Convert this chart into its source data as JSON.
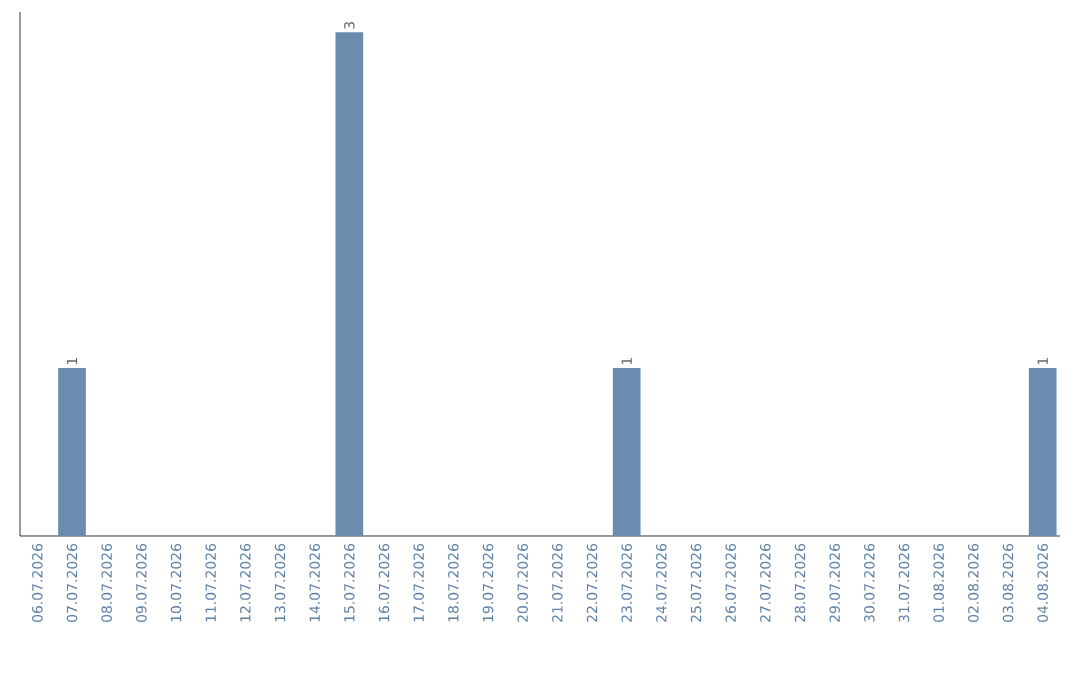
{
  "chart_data": {
    "type": "bar",
    "categories": [
      "06.07.2026",
      "07.07.2026",
      "08.07.2026",
      "09.07.2026",
      "10.07.2026",
      "11.07.2026",
      "12.07.2026",
      "13.07.2026",
      "14.07.2026",
      "15.07.2026",
      "16.07.2026",
      "17.07.2026",
      "18.07.2026",
      "19.07.2026",
      "20.07.2026",
      "21.07.2026",
      "22.07.2026",
      "23.07.2026",
      "24.07.2026",
      "25.07.2026",
      "26.07.2026",
      "27.07.2026",
      "28.07.2026",
      "29.07.2026",
      "30.07.2026",
      "31.07.2026",
      "01.08.2026",
      "02.08.2026",
      "03.08.2026",
      "04.08.2026"
    ],
    "values": [
      0,
      1,
      0,
      0,
      0,
      0,
      0,
      0,
      0,
      3,
      0,
      0,
      0,
      0,
      0,
      0,
      0,
      1,
      0,
      0,
      0,
      0,
      0,
      0,
      0,
      0,
      0,
      0,
      0,
      1
    ],
    "value_labels": [
      null,
      "1",
      null,
      null,
      null,
      null,
      null,
      null,
      null,
      "3",
      null,
      null,
      null,
      null,
      null,
      null,
      null,
      "1",
      null,
      null,
      null,
      null,
      null,
      null,
      null,
      null,
      null,
      null,
      null,
      "1"
    ],
    "color": "#6b8cae",
    "tick_labels": "x"
  }
}
